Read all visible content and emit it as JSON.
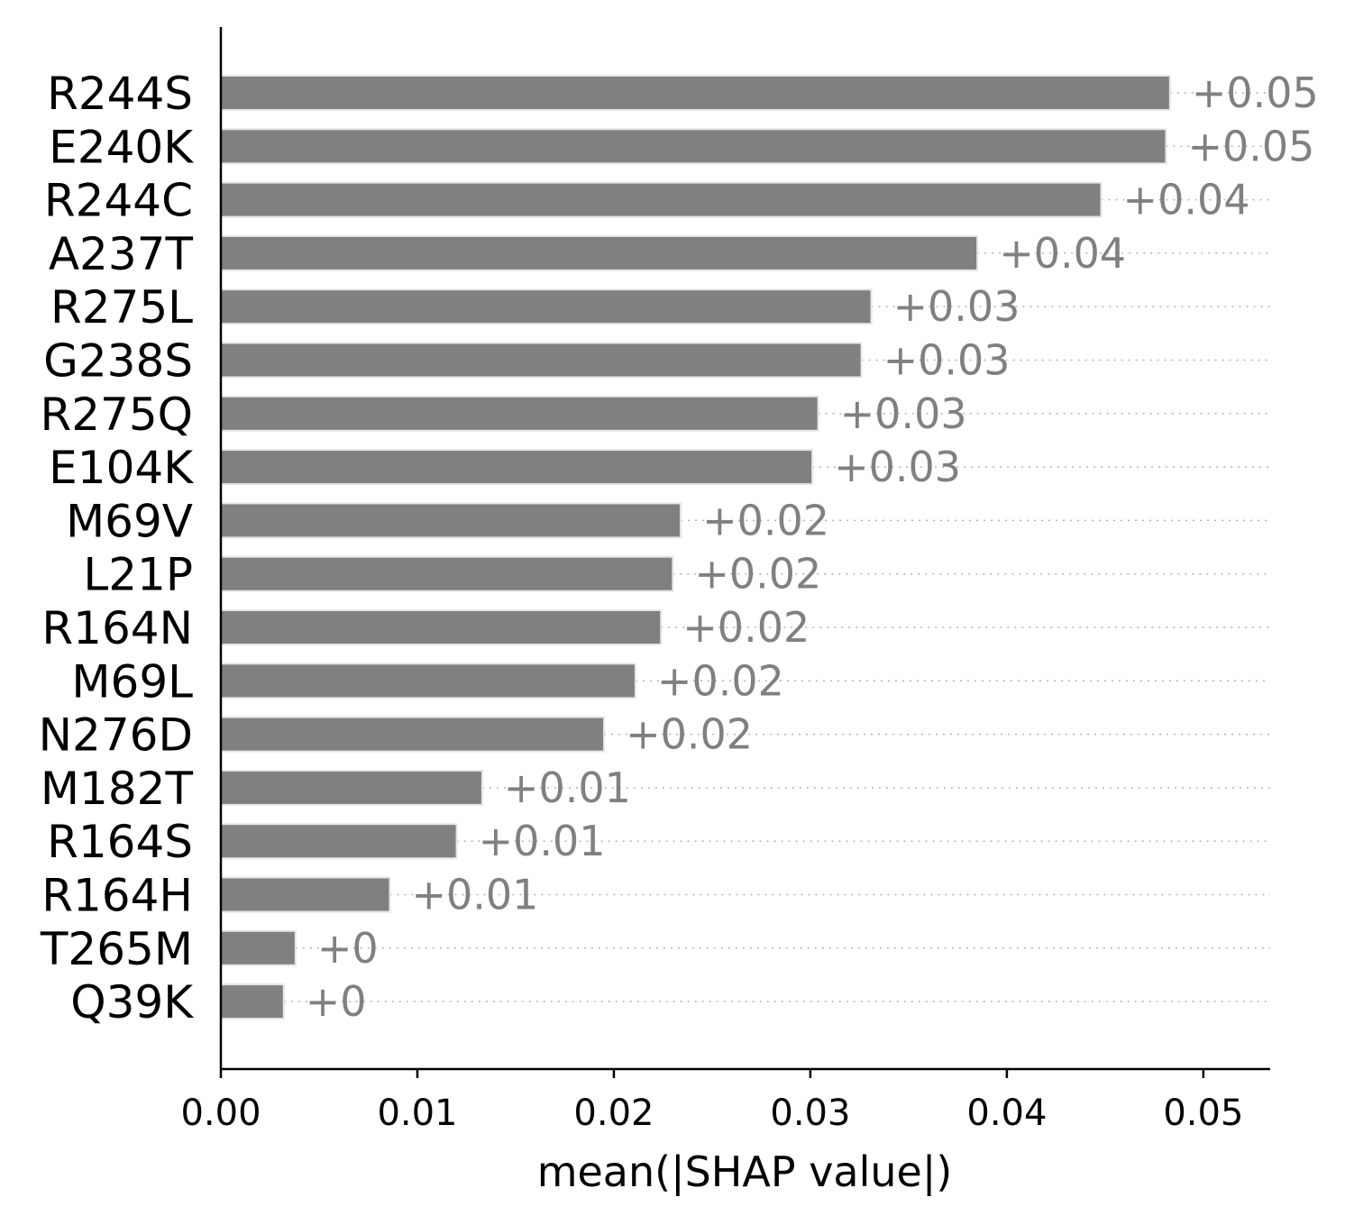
{
  "chart_data": {
    "type": "bar",
    "orientation": "horizontal",
    "categories": [
      "R244S",
      "E240K",
      "R244C",
      "A237T",
      "R275L",
      "G238S",
      "R275Q",
      "E104K",
      "M69V",
      "L21P",
      "R164N",
      "M69L",
      "N276D",
      "M182T",
      "R164S",
      "R164H",
      "T265M",
      "Q39K"
    ],
    "values": [
      0.0483,
      0.0481,
      0.0448,
      0.0385,
      0.0331,
      0.0326,
      0.0304,
      0.0301,
      0.0234,
      0.023,
      0.0224,
      0.0211,
      0.0195,
      0.0133,
      0.012,
      0.0086,
      0.0038,
      0.0032
    ],
    "value_labels": [
      "+0.05",
      "+0.05",
      "+0.04",
      "+0.04",
      "+0.03",
      "+0.03",
      "+0.03",
      "+0.03",
      "+0.02",
      "+0.02",
      "+0.02",
      "+0.02",
      "+0.02",
      "+0.01",
      "+0.01",
      "+0.01",
      "+0",
      "+0"
    ],
    "title": "",
    "xlabel": "mean(|SHAP value|)",
    "ylabel": "",
    "xlim": [
      0,
      0.0534
    ],
    "xticks": [
      0.0,
      0.01,
      0.02,
      0.03,
      0.04,
      0.05
    ],
    "xtick_labels": [
      "0.00",
      "0.01",
      "0.02",
      "0.03",
      "0.04",
      "0.05"
    ],
    "grid": "dotted row guides",
    "legend": "none",
    "colors": {
      "bar": "#808080",
      "bar_edge": "#e6e6e6",
      "value_label": "#808080",
      "guide": "#b3b3b3",
      "axis": "#000000"
    }
  }
}
